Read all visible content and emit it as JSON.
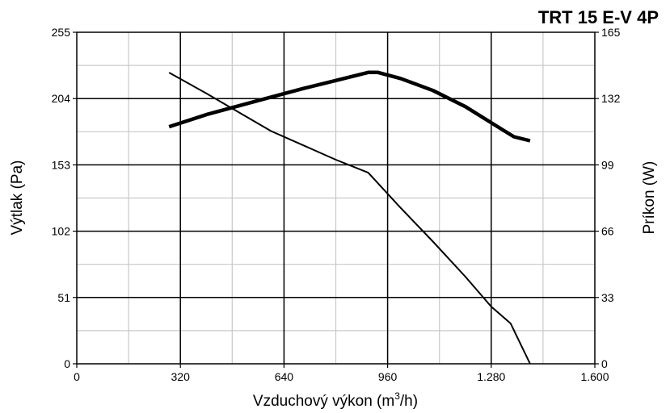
{
  "chart_data": {
    "type": "line",
    "title": "TRT 15 E-V 4P",
    "xlabel": "Vzduchový výkon (m",
    "xlabel_sup": "3",
    "xlabel_suffix": "/h)",
    "ylabel": "Výtlak (Pa)",
    "y2label": "Príkon (W)",
    "xlim": [
      0,
      1600
    ],
    "ylim": [
      0,
      255
    ],
    "y2lim": [
      0,
      165
    ],
    "x_ticks": [
      0,
      320,
      640,
      960,
      1280,
      1600
    ],
    "x_tick_labels": [
      "0",
      "320",
      "640",
      "960",
      "1.280",
      "1.600"
    ],
    "y_ticks": [
      0,
      51,
      102,
      153,
      204,
      255
    ],
    "y_tick_labels": [
      "0",
      "51",
      "102",
      "153",
      "204",
      "255"
    ],
    "y2_ticks": [
      0,
      33,
      66,
      99,
      132,
      165
    ],
    "y2_tick_labels": [
      "0",
      "33",
      "66",
      "99",
      "132",
      "165"
    ],
    "grid": true,
    "series": [
      {
        "axis": "left",
        "x": [
          285,
          400,
          600,
          800,
          900,
          1000,
          1100,
          1200,
          1280,
          1340,
          1400
        ],
        "y": [
          224,
          208,
          179,
          157,
          147,
          120,
          94,
          67,
          44,
          31,
          0
        ]
      },
      {
        "axis": "right",
        "x": [
          285,
          400,
          560,
          700,
          800,
          900,
          930,
          1000,
          1100,
          1200,
          1300,
          1350,
          1400
        ],
        "y": [
          118,
          124,
          131,
          137,
          141,
          145,
          145,
          142,
          136,
          128,
          118,
          113,
          111
        ]
      }
    ]
  }
}
